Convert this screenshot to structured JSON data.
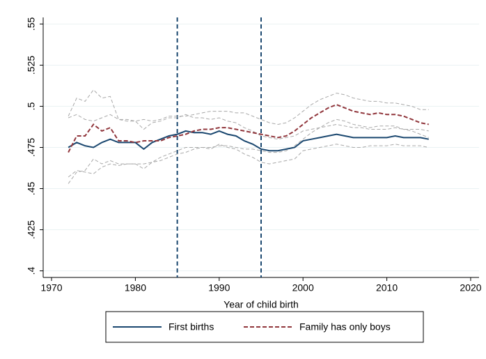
{
  "chart_data": {
    "type": "line",
    "xlabel": "Year of child birth",
    "x": [
      1972,
      1973,
      1974,
      1975,
      1976,
      1977,
      1978,
      1979,
      1980,
      1981,
      1982,
      1983,
      1984,
      1985,
      1986,
      1987,
      1988,
      1989,
      1990,
      1991,
      1992,
      1993,
      1994,
      1995,
      1996,
      1997,
      1998,
      1999,
      2000,
      2001,
      2002,
      2003,
      2004,
      2005,
      2006,
      2007,
      2008,
      2009,
      2010,
      2011,
      2012,
      2013,
      2014,
      2015
    ],
    "series": [
      {
        "color": "#a8a8a8",
        "dash": true,
        "values": [
          0.493,
          0.495,
          0.492,
          0.491,
          0.493,
          0.495,
          0.492,
          0.491,
          0.491,
          0.486,
          0.49,
          0.491,
          0.493,
          0.493,
          0.495,
          0.493,
          0.493,
          0.492,
          0.493,
          0.491,
          0.49,
          0.487,
          0.485,
          0.482,
          0.481,
          0.48,
          0.481,
          0.482,
          0.485,
          0.486,
          0.487,
          0.488,
          0.489,
          0.488,
          0.487,
          0.487,
          0.486,
          0.486,
          0.486,
          0.487,
          0.486,
          0.486,
          0.486,
          0.485
        ]
      },
      {
        "color": "#a8a8a8",
        "dash": true,
        "values": [
          0.457,
          0.461,
          0.46,
          0.459,
          0.463,
          0.465,
          0.464,
          0.465,
          0.465,
          0.462,
          0.466,
          0.469,
          0.471,
          0.473,
          0.475,
          0.475,
          0.475,
          0.474,
          0.477,
          0.475,
          0.474,
          0.471,
          0.469,
          0.466,
          0.465,
          0.466,
          0.467,
          0.468,
          0.473,
          0.474,
          0.475,
          0.476,
          0.477,
          0.476,
          0.475,
          0.475,
          0.476,
          0.476,
          0.476,
          0.477,
          0.476,
          0.476,
          0.476,
          0.475
        ]
      },
      {
        "color": "#a8a8a8",
        "dash": true,
        "values": [
          0.494,
          0.505,
          0.503,
          0.51,
          0.505,
          0.506,
          0.492,
          0.492,
          0.491,
          0.492,
          0.491,
          0.492,
          0.494,
          0.494,
          0.494,
          0.495,
          0.496,
          0.497,
          0.497,
          0.497,
          0.496,
          0.496,
          0.494,
          0.492,
          0.49,
          0.489,
          0.49,
          0.493,
          0.497,
          0.501,
          0.504,
          0.506,
          0.508,
          0.507,
          0.505,
          0.504,
          0.503,
          0.503,
          0.502,
          0.502,
          0.501,
          0.5,
          0.498,
          0.498
        ]
      },
      {
        "color": "#a8a8a8",
        "dash": true,
        "values": [
          0.453,
          0.46,
          0.461,
          0.468,
          0.465,
          0.467,
          0.465,
          0.465,
          0.465,
          0.465,
          0.466,
          0.467,
          0.469,
          0.471,
          0.472,
          0.474,
          0.475,
          0.475,
          0.476,
          0.476,
          0.475,
          0.474,
          0.474,
          0.473,
          0.472,
          0.472,
          0.473,
          0.476,
          0.48,
          0.484,
          0.487,
          0.49,
          0.492,
          0.491,
          0.489,
          0.488,
          0.487,
          0.488,
          0.488,
          0.488,
          0.486,
          0.485,
          0.483,
          0.481
        ]
      },
      {
        "name": "First births",
        "color": "#1a476f",
        "dash": false,
        "values": [
          0.475,
          0.478,
          0.476,
          0.475,
          0.478,
          0.48,
          0.478,
          0.478,
          0.478,
          0.474,
          0.478,
          0.48,
          0.482,
          0.483,
          0.485,
          0.484,
          0.484,
          0.483,
          0.485,
          0.483,
          0.482,
          0.479,
          0.477,
          0.474,
          0.473,
          0.473,
          0.474,
          0.475,
          0.479,
          0.48,
          0.481,
          0.482,
          0.483,
          0.482,
          0.481,
          0.481,
          0.481,
          0.481,
          0.481,
          0.482,
          0.481,
          0.481,
          0.481,
          0.48
        ]
      },
      {
        "name": "Family has only boys",
        "color": "#90353b",
        "dash": true,
        "values": [
          0.472,
          0.482,
          0.482,
          0.489,
          0.485,
          0.487,
          0.479,
          0.479,
          0.478,
          0.479,
          0.479,
          0.479,
          0.481,
          0.482,
          0.483,
          0.485,
          0.486,
          0.486,
          0.487,
          0.487,
          0.486,
          0.485,
          0.484,
          0.483,
          0.482,
          0.481,
          0.482,
          0.485,
          0.489,
          0.493,
          0.496,
          0.499,
          0.501,
          0.499,
          0.497,
          0.496,
          0.495,
          0.496,
          0.495,
          0.495,
          0.494,
          0.492,
          0.49,
          0.489
        ]
      }
    ],
    "vlines": [
      1985,
      1995
    ],
    "vline_color": "#1a476f",
    "xlim": [
      1969,
      2021
    ],
    "xticks": [
      1970,
      1980,
      1990,
      2000,
      2010,
      2020
    ],
    "ylim": [
      0.396,
      0.554
    ],
    "yticks": [
      {
        "value": 0.4,
        "label": ".4"
      },
      {
        "value": 0.425,
        "label": ".425"
      },
      {
        "value": 0.45,
        "label": ".45"
      },
      {
        "value": 0.475,
        "label": ".475"
      },
      {
        "value": 0.5,
        "label": ".5"
      },
      {
        "value": 0.525,
        "label": ".525"
      },
      {
        "value": 0.55,
        "label": ".55"
      }
    ],
    "grid": true
  }
}
